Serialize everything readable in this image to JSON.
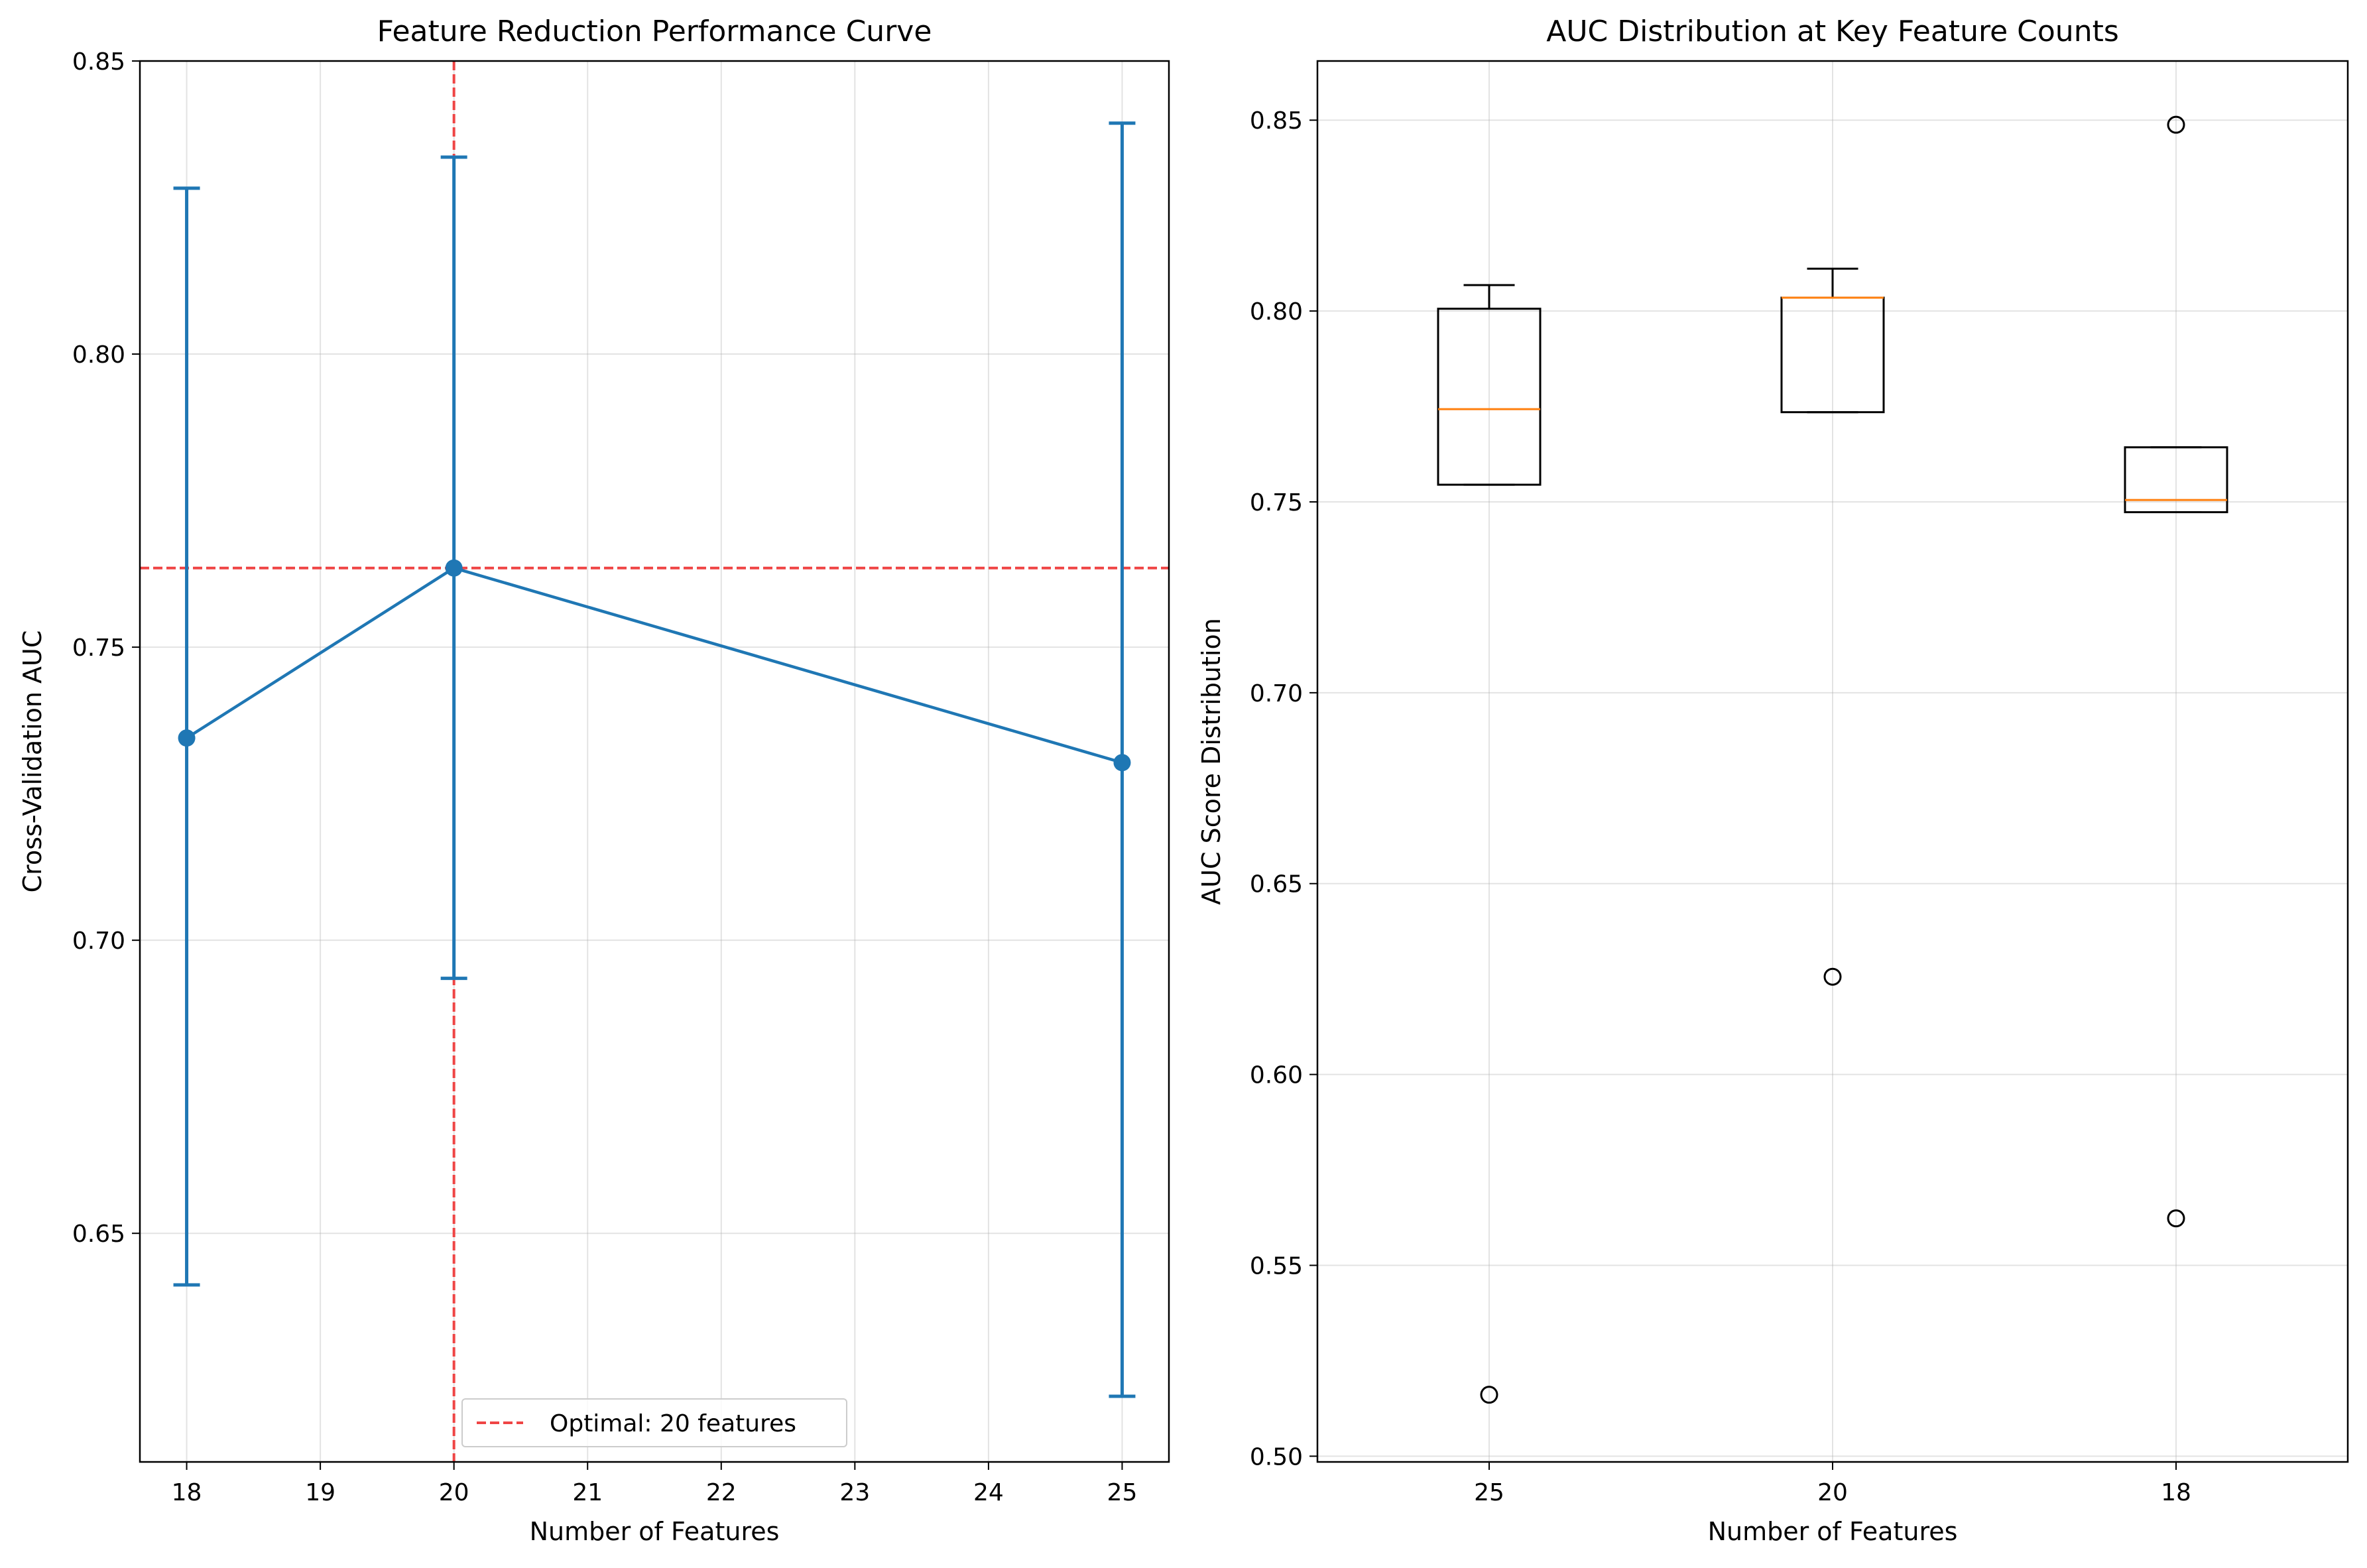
{
  "chart_data": [
    {
      "type": "line",
      "title": "Feature Reduction Performance Curve",
      "xlabel": "Number of Features",
      "ylabel": "Cross-Validation AUC",
      "xlim": [
        17.65,
        25.35
      ],
      "ylim": [
        0.611,
        0.85
      ],
      "x_ticks": [
        18,
        19,
        20,
        21,
        22,
        23,
        24,
        25
      ],
      "y_ticks": [
        0.65,
        0.7,
        0.75,
        0.8,
        0.85
      ],
      "grid": true,
      "legend_position": "lower center",
      "series": [
        {
          "x": [
            18,
            20,
            25
          ],
          "y": [
            0.7345,
            0.7635,
            0.7303
          ],
          "error_low": [
            0.6412,
            0.6935,
            0.6222
          ],
          "error_high": [
            0.8283,
            0.8336,
            0.8394
          ],
          "color": "#1f77b4"
        }
      ],
      "reference_lines": {
        "vertical_x": 20,
        "horizontal_y": 0.7635,
        "color": "#ef4545",
        "legend_label": "Optimal: 20 features"
      }
    },
    {
      "type": "box",
      "title": "AUC Distribution at Key Feature Counts",
      "xlabel": "Number of Features",
      "ylabel": "AUC Score Distribution",
      "categories": [
        "25",
        "20",
        "18"
      ],
      "ylim": [
        0.4985,
        0.8655
      ],
      "y_ticks": [
        0.5,
        0.55,
        0.6,
        0.65,
        0.7,
        0.75,
        0.8,
        0.85
      ],
      "grid": true,
      "boxes": [
        {
          "whisker_low": 0.7545,
          "q1": 0.7545,
          "median": 0.7743,
          "q3": 0.8006,
          "whisker_high": 0.8068,
          "outliers": [
            0.5161
          ]
        },
        {
          "whisker_low": 0.7735,
          "q1": 0.7735,
          "median": 0.8035,
          "q3": 0.8035,
          "whisker_high": 0.8111,
          "outliers": [
            0.6256
          ]
        },
        {
          "whisker_low": 0.7473,
          "q1": 0.7473,
          "median": 0.7505,
          "q3": 0.7643,
          "whisker_high": 0.7643,
          "outliers": [
            0.8488,
            0.5623
          ]
        }
      ],
      "median_color": "#ff7f0e"
    }
  ]
}
